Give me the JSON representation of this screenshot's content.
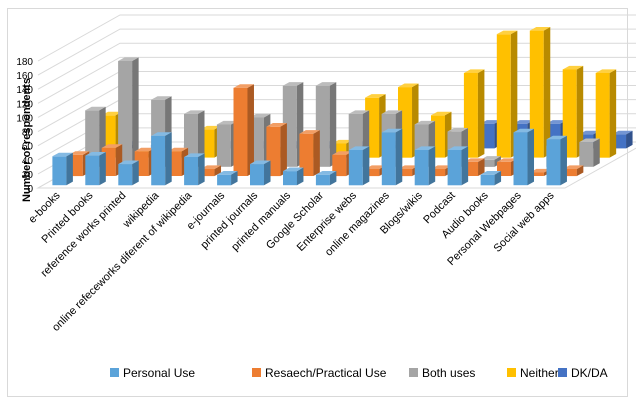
{
  "chart_data": {
    "type": "bar",
    "ylabel": "Number of respondents",
    "xlabel": "",
    "title": "",
    "ylim": [
      0,
      180
    ],
    "yticks": [
      0,
      20,
      40,
      60,
      80,
      100,
      120,
      140,
      160,
      180
    ],
    "grid": true,
    "legend_position": "bottom",
    "categories": [
      "e-books",
      "Printed books",
      "reference works printed",
      "wikipedia",
      "online refeceworks diferent of wikipedia",
      "e-journals",
      "printed journals",
      "printed manuals",
      "Google Scholar",
      "Enterprise webs",
      "online magazines",
      "Blogs/wikis",
      "Podcast",
      "Audio books",
      "Personal Webpages",
      "Social web apps"
    ],
    "series": [
      {
        "name": "Personal Use",
        "color": "#5ba3d9",
        "values": [
          41,
          42,
          30,
          70,
          40,
          15,
          30,
          20,
          15,
          50,
          75,
          50,
          50,
          15,
          75,
          65
        ]
      },
      {
        "name": "Resaech/Practical Use",
        "color": "#ed7d31",
        "values": [
          30,
          40,
          35,
          35,
          10,
          125,
          70,
          60,
          30,
          10,
          10,
          10,
          20,
          20,
          5,
          10
        ]
      },
      {
        "name": "Both uses",
        "color": "#a5a5a5",
        "values": [
          80,
          150,
          95,
          75,
          60,
          70,
          115,
          115,
          75,
          75,
          60,
          50,
          10,
          20,
          30,
          35
        ]
      },
      {
        "name": "Neither",
        "color": "#ffc000",
        "values": [
          60,
          5,
          5,
          40,
          25,
          10,
          20,
          20,
          85,
          100,
          60,
          120,
          175,
          180,
          125,
          120
        ]
      },
      {
        "name": "DK/DA",
        "color": "#4472c4",
        "values": [
          5,
          5,
          5,
          5,
          5,
          5,
          5,
          5,
          5,
          5,
          5,
          35,
          35,
          35,
          20,
          20
        ]
      }
    ]
  }
}
